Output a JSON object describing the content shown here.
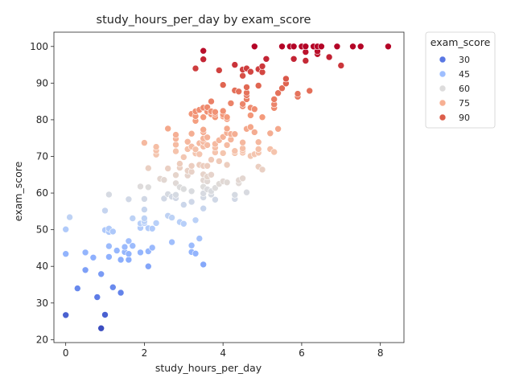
{
  "chart_data": {
    "type": "scatter",
    "title": "study_hours_per_day by exam_score",
    "xlabel": "study_hours_per_day",
    "ylabel": "exam_score",
    "xlim": [
      -0.3,
      8.6
    ],
    "ylim": [
      19.2,
      103.9
    ],
    "xticks": [
      0,
      2,
      4,
      6,
      8
    ],
    "yticks": [
      20,
      30,
      40,
      50,
      60,
      70,
      80,
      90,
      100
    ],
    "grid": false,
    "legend": {
      "title": "exam_score",
      "placement": "outside-upper-right",
      "entries": [
        {
          "label": "30",
          "color": "#5977e3"
        },
        {
          "label": "45",
          "color": "#9ebeff"
        },
        {
          "label": "60",
          "color": "#dddcdc"
        },
        {
          "label": "75",
          "color": "#f7b093"
        },
        {
          "label": "90",
          "color": "#dc5d4a"
        }
      ]
    },
    "colormap": "coolwarm",
    "hue_range": [
      23,
      100
    ],
    "points": [
      [
        0.0,
        26.7
      ],
      [
        0.0,
        43.4
      ],
      [
        0.0,
        50.1
      ],
      [
        0.1,
        53.4
      ],
      [
        0.3,
        34.0
      ],
      [
        0.5,
        39.0
      ],
      [
        0.5,
        43.8
      ],
      [
        0.7,
        42.4
      ],
      [
        0.8,
        31.6
      ],
      [
        0.9,
        23.1
      ],
      [
        0.9,
        37.9
      ],
      [
        1.0,
        26.8
      ],
      [
        1.0,
        49.9
      ],
      [
        1.0,
        55.2
      ],
      [
        1.1,
        42.6
      ],
      [
        1.1,
        45.5
      ],
      [
        1.1,
        49.4
      ],
      [
        1.1,
        50.3
      ],
      [
        1.1,
        59.6
      ],
      [
        1.2,
        34.3
      ],
      [
        1.2,
        49.5
      ],
      [
        1.3,
        44.3
      ],
      [
        1.4,
        32.8
      ],
      [
        1.4,
        41.8
      ],
      [
        1.5,
        43.9
      ],
      [
        1.5,
        45.3
      ],
      [
        1.6,
        41.8
      ],
      [
        1.6,
        43.4
      ],
      [
        1.6,
        46.9
      ],
      [
        1.6,
        58.3
      ],
      [
        1.7,
        45.6
      ],
      [
        1.7,
        53.1
      ],
      [
        1.9,
        43.8
      ],
      [
        1.9,
        50.5
      ],
      [
        1.9,
        51.7
      ],
      [
        1.9,
        61.8
      ],
      [
        2.0,
        51.8
      ],
      [
        2.0,
        52.3
      ],
      [
        2.0,
        53.1
      ],
      [
        2.0,
        55.5
      ],
      [
        2.0,
        58.4
      ],
      [
        2.0,
        73.7
      ],
      [
        2.1,
        40.0
      ],
      [
        2.1,
        44.1
      ],
      [
        2.1,
        50.4
      ],
      [
        2.1,
        61.6
      ],
      [
        2.1,
        66.8
      ],
      [
        2.2,
        45.1
      ],
      [
        2.2,
        50.3
      ],
      [
        2.3,
        51.8
      ],
      [
        2.3,
        70.5
      ],
      [
        2.3,
        71.6
      ],
      [
        2.3,
        72.6
      ],
      [
        2.4,
        63.9
      ],
      [
        2.5,
        58.5
      ],
      [
        2.5,
        63.6
      ],
      [
        2.6,
        53.8
      ],
      [
        2.6,
        59.7
      ],
      [
        2.6,
        66.7
      ],
      [
        2.6,
        77.6
      ],
      [
        2.7,
        46.6
      ],
      [
        2.7,
        53.3
      ],
      [
        2.7,
        59.0
      ],
      [
        2.8,
        58.6
      ],
      [
        2.8,
        59.5
      ],
      [
        2.8,
        62.7
      ],
      [
        2.8,
        64.9
      ],
      [
        2.8,
        71.4
      ],
      [
        2.8,
        73.2
      ],
      [
        2.8,
        74.8
      ],
      [
        2.8,
        75.9
      ],
      [
        2.9,
        52.1
      ],
      [
        2.9,
        61.6
      ],
      [
        2.9,
        66.9
      ],
      [
        2.9,
        68.0
      ],
      [
        3.0,
        51.6
      ],
      [
        3.0,
        56.8
      ],
      [
        3.0,
        61.1
      ],
      [
        3.0,
        69.8
      ],
      [
        3.1,
        64.8
      ],
      [
        3.1,
        66.1
      ],
      [
        3.1,
        72.0
      ],
      [
        3.1,
        74.0
      ],
      [
        3.2,
        43.9
      ],
      [
        3.2,
        45.7
      ],
      [
        3.2,
        57.6
      ],
      [
        3.2,
        60.5
      ],
      [
        3.2,
        65.8
      ],
      [
        3.2,
        67.4
      ],
      [
        3.2,
        72.7
      ],
      [
        3.2,
        76.2
      ],
      [
        3.2,
        81.6
      ],
      [
        3.3,
        43.5
      ],
      [
        3.3,
        52.6
      ],
      [
        3.3,
        70.8
      ],
      [
        3.3,
        71.9
      ],
      [
        3.3,
        79.7
      ],
      [
        3.3,
        81.0
      ],
      [
        3.3,
        82.3
      ],
      [
        3.3,
        94.0
      ],
      [
        3.4,
        47.6
      ],
      [
        3.4,
        67.7
      ],
      [
        3.4,
        70.6
      ],
      [
        3.4,
        73.6
      ],
      [
        3.4,
        82.7
      ],
      [
        3.5,
        40.5
      ],
      [
        3.5,
        55.8
      ],
      [
        3.5,
        58.8
      ],
      [
        3.5,
        59.9
      ],
      [
        3.5,
        61.7
      ],
      [
        3.5,
        63.5
      ],
      [
        3.5,
        65.1
      ],
      [
        3.5,
        67.4
      ],
      [
        3.5,
        72.7
      ],
      [
        3.5,
        74.0
      ],
      [
        3.5,
        74.9
      ],
      [
        3.5,
        76.6
      ],
      [
        3.5,
        77.3
      ],
      [
        3.5,
        80.7
      ],
      [
        3.5,
        83.3
      ],
      [
        3.5,
        96.5
      ],
      [
        3.5,
        98.8
      ],
      [
        3.6,
        61.0
      ],
      [
        3.6,
        63.2
      ],
      [
        3.6,
        64.5
      ],
      [
        3.6,
        67.4
      ],
      [
        3.6,
        73.1
      ],
      [
        3.6,
        75.2
      ],
      [
        3.6,
        82.2
      ],
      [
        3.6,
        83.4
      ],
      [
        3.7,
        59.6
      ],
      [
        3.7,
        60.5
      ],
      [
        3.7,
        65.0
      ],
      [
        3.7,
        69.1
      ],
      [
        3.7,
        81.5
      ],
      [
        3.7,
        82.3
      ],
      [
        3.7,
        85.0
      ],
      [
        3.8,
        58.2
      ],
      [
        3.8,
        61.4
      ],
      [
        3.8,
        71.1
      ],
      [
        3.8,
        72.4
      ],
      [
        3.8,
        73.4
      ],
      [
        3.8,
        80.7
      ],
      [
        3.8,
        81.6
      ],
      [
        3.8,
        82.1
      ],
      [
        3.9,
        62.5
      ],
      [
        3.9,
        68.7
      ],
      [
        3.9,
        74.4
      ],
      [
        3.9,
        93.5
      ],
      [
        4.0,
        63.2
      ],
      [
        4.0,
        70.9
      ],
      [
        4.0,
        75.3
      ],
      [
        4.0,
        80.9
      ],
      [
        4.0,
        81.4
      ],
      [
        4.0,
        82.4
      ],
      [
        4.0,
        89.5
      ],
      [
        4.1,
        62.9
      ],
      [
        4.1,
        67.7
      ],
      [
        4.1,
        73.1
      ],
      [
        4.1,
        76.4
      ],
      [
        4.1,
        77.6
      ],
      [
        4.1,
        80.2
      ],
      [
        4.1,
        80.7
      ],
      [
        4.2,
        74.6
      ],
      [
        4.2,
        76.1
      ],
      [
        4.2,
        84.5
      ],
      [
        4.3,
        58.4
      ],
      [
        4.3,
        59.5
      ],
      [
        4.3,
        70.9
      ],
      [
        4.3,
        71.5
      ],
      [
        4.3,
        76.1
      ],
      [
        4.3,
        88.0
      ],
      [
        4.3,
        95.0
      ],
      [
        4.4,
        62.7
      ],
      [
        4.4,
        63.5
      ],
      [
        4.4,
        87.7
      ],
      [
        4.5,
        64.0
      ],
      [
        4.5,
        71.0
      ],
      [
        4.5,
        71.6
      ],
      [
        4.5,
        72.2
      ],
      [
        4.5,
        73.8
      ],
      [
        4.5,
        83.7
      ],
      [
        4.5,
        84.3
      ],
      [
        4.5,
        92.0
      ],
      [
        4.5,
        93.7
      ],
      [
        4.6,
        60.2
      ],
      [
        4.6,
        77.5
      ],
      [
        4.6,
        85.6
      ],
      [
        4.6,
        86.7
      ],
      [
        4.6,
        87.4
      ],
      [
        4.6,
        88.9
      ],
      [
        4.6,
        94.0
      ],
      [
        4.7,
        70.1
      ],
      [
        4.7,
        78.0
      ],
      [
        4.7,
        81.2
      ],
      [
        4.7,
        83.3
      ],
      [
        4.7,
        93.1
      ],
      [
        4.8,
        70.6
      ],
      [
        4.8,
        76.6
      ],
      [
        4.8,
        82.9
      ],
      [
        4.8,
        100.0
      ],
      [
        4.9,
        67.2
      ],
      [
        4.9,
        71.0
      ],
      [
        4.9,
        72.0
      ],
      [
        4.9,
        73.9
      ],
      [
        4.9,
        89.3
      ],
      [
        4.9,
        93.8
      ],
      [
        5.0,
        66.4
      ],
      [
        5.0,
        80.7
      ],
      [
        5.0,
        93.0
      ],
      [
        5.0,
        94.6
      ],
      [
        5.1,
        96.6
      ],
      [
        5.2,
        72.0
      ],
      [
        5.2,
        76.3
      ],
      [
        5.3,
        71.2
      ],
      [
        5.3,
        83.2
      ],
      [
        5.3,
        84.2
      ],
      [
        5.3,
        85.6
      ],
      [
        5.4,
        77.5
      ],
      [
        5.4,
        87.3
      ],
      [
        5.5,
        88.6
      ],
      [
        5.5,
        100.0
      ],
      [
        5.6,
        89.9
      ],
      [
        5.6,
        91.2
      ],
      [
        5.7,
        100.0
      ],
      [
        5.8,
        96.6
      ],
      [
        5.8,
        100.0
      ],
      [
        5.9,
        86.3
      ],
      [
        5.9,
        87.1
      ],
      [
        6.0,
        100.0
      ],
      [
        6.1,
        96.1
      ],
      [
        6.1,
        98.5
      ],
      [
        6.1,
        100.0
      ],
      [
        6.2,
        87.9
      ],
      [
        6.3,
        100.0
      ],
      [
        6.4,
        97.9
      ],
      [
        6.4,
        98.7
      ],
      [
        6.4,
        100.0
      ],
      [
        6.5,
        100.0
      ],
      [
        6.7,
        97.1
      ],
      [
        6.9,
        100.0
      ],
      [
        7.0,
        94.8
      ],
      [
        7.3,
        100.0
      ],
      [
        7.5,
        100.0
      ],
      [
        8.2,
        100.0
      ]
    ]
  }
}
